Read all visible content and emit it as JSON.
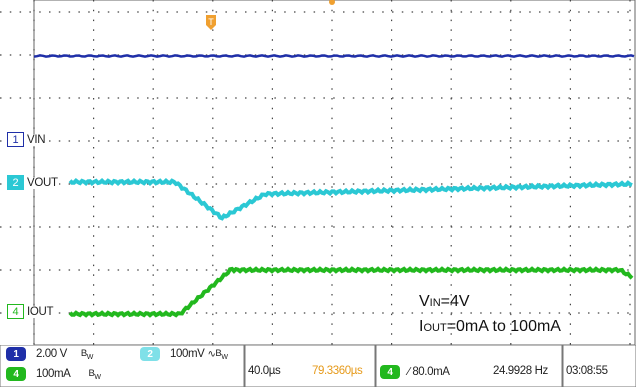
{
  "channels": [
    {
      "number": "1",
      "label": "VIN",
      "color": "#1f2fa8"
    },
    {
      "number": "2",
      "label": "VOUT",
      "color": "#2bc8d4"
    },
    {
      "number": "4",
      "label": "IOUT",
      "color": "#22b81e"
    }
  ],
  "annotation": {
    "vin_prefix": "V",
    "vin_sub": "IN",
    "vin_value": "=4V",
    "iout_prefix": "I",
    "iout_sub": "OUT",
    "iout_value": "=0mA to 100mA"
  },
  "status": {
    "ch1_number": "1",
    "ch1_scale": "2.00 V",
    "ch1_bw": "B",
    "ch2_number": "2",
    "ch2_scale": "100mV",
    "ch2_bw": "B",
    "ch4_number": "4",
    "ch4_scale": "100mA",
    "ch4_bw": "B",
    "timebase": "40.0µs",
    "trigger_position": "79.3360µs",
    "trigger_channel": "4",
    "trigger_level": "∕ 80.0mA",
    "trigger_frequency": "24.9928 Hz",
    "clock": "03:08:55"
  }
}
